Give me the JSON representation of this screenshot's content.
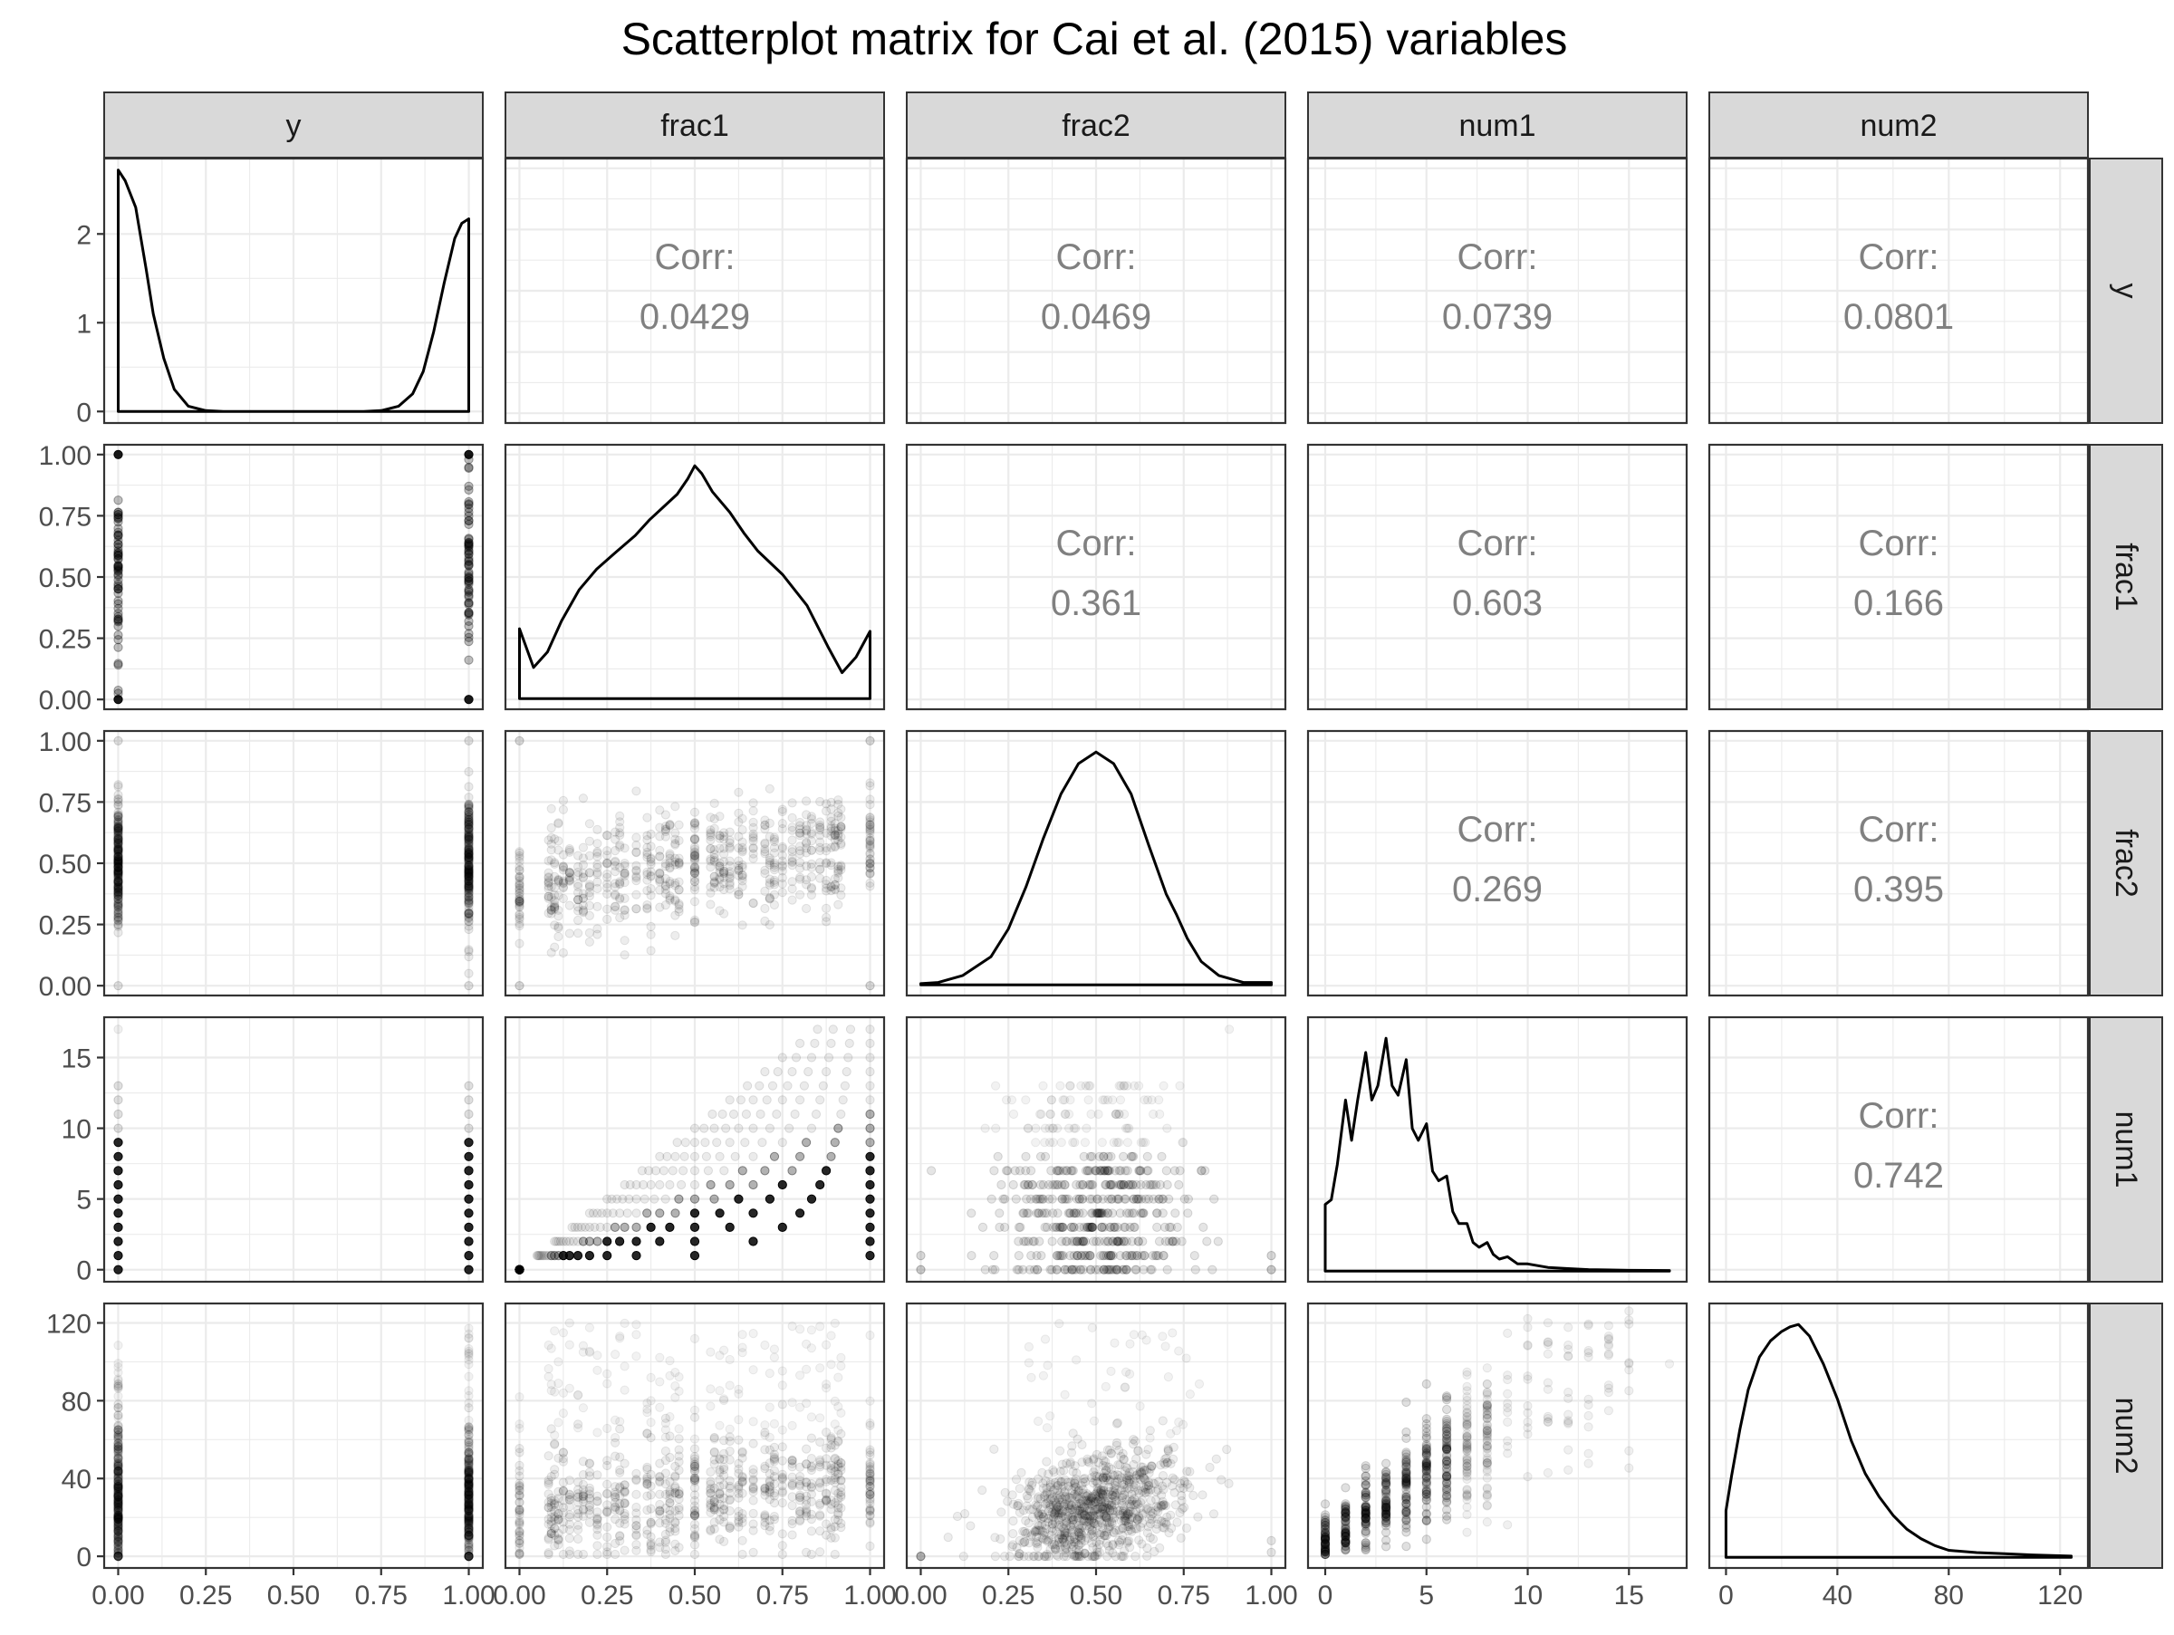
{
  "chart_data": {
    "type": "scatter",
    "title": "Scatterplot matrix for Cai et al. (2015) variables",
    "variables": [
      "y",
      "frac1",
      "frac2",
      "num1",
      "num2"
    ],
    "grid": true,
    "axes": {
      "y": {
        "lim": [
          -0.04,
          1.04
        ],
        "ticks": [
          0,
          0.25,
          0.5,
          0.75,
          1
        ],
        "tick_labels": [
          "0.00",
          "0.25",
          "0.50",
          "0.75",
          "1.00"
        ]
      },
      "frac1": {
        "lim": [
          -0.04,
          1.04
        ],
        "ticks": [
          0,
          0.25,
          0.5,
          0.75,
          1
        ],
        "tick_labels": [
          "0.00",
          "0.25",
          "0.50",
          "0.75",
          "1.00"
        ]
      },
      "frac2": {
        "lim": [
          -0.04,
          1.04
        ],
        "ticks": [
          0,
          0.25,
          0.5,
          0.75,
          1
        ],
        "tick_labels": [
          "0.00",
          "0.25",
          "0.50",
          "0.75",
          "1.00"
        ]
      },
      "num1": {
        "lim": [
          -0.85,
          17.85
        ],
        "ticks": [
          0,
          5,
          10,
          15
        ],
        "tick_labels": [
          "0",
          "5",
          "10",
          "15"
        ]
      },
      "num2": {
        "lim": [
          -6,
          130
        ],
        "ticks": [
          0,
          40,
          80,
          120
        ],
        "tick_labels": [
          "0",
          "40",
          "80",
          "120"
        ]
      }
    },
    "density_axis_y": {
      "lim": [
        -0.13,
        2.85
      ],
      "ticks": [
        0,
        1,
        2
      ],
      "tick_labels": [
        "0",
        "1",
        "2"
      ]
    },
    "correlations": [
      {
        "row": "y",
        "col": "frac1",
        "label": "Corr:",
        "value": "0.0429"
      },
      {
        "row": "y",
        "col": "frac2",
        "label": "Corr:",
        "value": "0.0469"
      },
      {
        "row": "y",
        "col": "num1",
        "label": "Corr:",
        "value": "0.0739"
      },
      {
        "row": "y",
        "col": "num2",
        "label": "Corr:",
        "value": "0.0801"
      },
      {
        "row": "frac1",
        "col": "frac2",
        "label": "Corr:",
        "value": "0.361"
      },
      {
        "row": "frac1",
        "col": "num1",
        "label": "Corr:",
        "value": "0.603"
      },
      {
        "row": "frac1",
        "col": "num2",
        "label": "Corr:",
        "value": "0.166"
      },
      {
        "row": "frac2",
        "col": "num1",
        "label": "Corr:",
        "value": "0.269"
      },
      {
        "row": "frac2",
        "col": "num2",
        "label": "Corr:",
        "value": "0.395"
      },
      {
        "row": "num1",
        "col": "num2",
        "label": "Corr:",
        "value": "0.742"
      }
    ],
    "densities": {
      "y": {
        "x": [
          0,
          0.02,
          0.05,
          0.08,
          0.1,
          0.13,
          0.16,
          0.2,
          0.25,
          0.3,
          0.4,
          0.5,
          0.6,
          0.7,
          0.75,
          0.8,
          0.84,
          0.87,
          0.9,
          0.93,
          0.96,
          0.98,
          1
        ],
        "y": [
          2.72,
          2.6,
          2.3,
          1.6,
          1.1,
          0.6,
          0.25,
          0.06,
          0.01,
          0,
          0,
          0,
          0,
          0,
          0.01,
          0.06,
          0.2,
          0.45,
          0.9,
          1.45,
          1.95,
          2.12,
          2.17
        ]
      },
      "frac1": {
        "x": [
          0,
          0.04,
          0.08,
          0.12,
          0.17,
          0.22,
          0.27,
          0.33,
          0.37,
          0.41,
          0.45,
          0.48,
          0.5,
          0.52,
          0.55,
          0.6,
          0.64,
          0.68,
          0.75,
          0.82,
          0.88,
          0.92,
          0.96,
          1
        ],
        "y": [
          0.27,
          0.12,
          0.18,
          0.3,
          0.42,
          0.5,
          0.56,
          0.63,
          0.69,
          0.74,
          0.79,
          0.85,
          0.9,
          0.87,
          0.8,
          0.72,
          0.64,
          0.57,
          0.48,
          0.36,
          0.2,
          0.1,
          0.16,
          0.26
        ]
      },
      "frac2": {
        "x": [
          0,
          0.05,
          0.12,
          0.2,
          0.25,
          0.3,
          0.35,
          0.4,
          0.45,
          0.5,
          0.55,
          0.6,
          0.65,
          0.7,
          0.73,
          0.76,
          0.8,
          0.85,
          0.92,
          1
        ],
        "y": [
          0.005,
          0.01,
          0.04,
          0.12,
          0.24,
          0.42,
          0.63,
          0.82,
          0.95,
          1.0,
          0.95,
          0.82,
          0.6,
          0.39,
          0.3,
          0.2,
          0.1,
          0.04,
          0.01,
          0.01
        ]
      },
      "num1": {
        "x": [
          0,
          0.3,
          0.6,
          1,
          1.3,
          1.6,
          2,
          2.3,
          2.6,
          3,
          3.3,
          3.6,
          4,
          4.3,
          4.6,
          5,
          5.3,
          5.6,
          6,
          6.3,
          6.6,
          7,
          7.3,
          7.6,
          8,
          8.3,
          8.6,
          9,
          9.5,
          10,
          11,
          12,
          13,
          15,
          17
        ],
        "y": [
          0.28,
          0.3,
          0.45,
          0.72,
          0.55,
          0.72,
          0.92,
          0.72,
          0.78,
          0.98,
          0.78,
          0.74,
          0.89,
          0.6,
          0.55,
          0.62,
          0.42,
          0.38,
          0.4,
          0.25,
          0.2,
          0.2,
          0.12,
          0.1,
          0.12,
          0.07,
          0.05,
          0.06,
          0.03,
          0.03,
          0.015,
          0.01,
          0.006,
          0.003,
          0.002
        ]
      },
      "num2": {
        "x": [
          0,
          2,
          5,
          8,
          12,
          16,
          20,
          23,
          26,
          30,
          35,
          40,
          45,
          50,
          55,
          60,
          65,
          70,
          75,
          80,
          90,
          100,
          110,
          124
        ],
        "y": [
          0.2,
          0.35,
          0.55,
          0.72,
          0.86,
          0.93,
          0.97,
          0.99,
          1.0,
          0.95,
          0.83,
          0.68,
          0.5,
          0.36,
          0.26,
          0.18,
          0.12,
          0.08,
          0.05,
          0.03,
          0.02,
          0.015,
          0.01,
          0.005
        ]
      }
    }
  }
}
